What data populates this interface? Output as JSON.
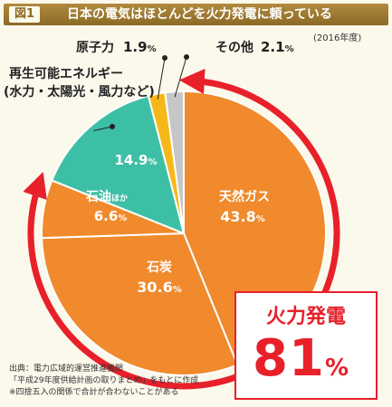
{
  "header": {
    "figure_label": "図1",
    "title": "日本の電気はほとんどを火力発電に頼っている"
  },
  "year_note": "(2016年度)",
  "chart_data": {
    "type": "pie",
    "title": "日本の電気はほとんどを火力発電に頼っている",
    "slices": [
      {
        "label": "天然ガス",
        "value": 43.8,
        "value_text": "43.8",
        "color": "#f08a2c"
      },
      {
        "label": "石炭",
        "value": 30.6,
        "value_text": "30.6",
        "color": "#f08a2c"
      },
      {
        "label": "石油",
        "label_suffix": "ほか",
        "value": 6.6,
        "value_text": "6.6",
        "color": "#f08a2c"
      },
      {
        "label_line1": "再生可能エネルギー",
        "label_line2": "(水力・太陽光・風力など)",
        "value": 14.9,
        "value_text": "14.9",
        "color": "#3dbfa6"
      },
      {
        "label": "原子力",
        "value": 1.9,
        "value_text": "1.9",
        "color": "#f5b818"
      },
      {
        "label": "その他",
        "value": 2.1,
        "value_text": "2.1",
        "color": "#c6c6c6"
      }
    ],
    "unit": "%",
    "highlight_color": "#e8202a"
  },
  "callout": {
    "title": "火力発電",
    "value": "81",
    "unit": "%"
  },
  "footer": {
    "line1": "出典：電力広域的運営推進機関",
    "line2": "「平成29年度供給計画の取りまとめ」をもとに作成",
    "line3": "※四捨五入の関係で合計が合わないことがある"
  }
}
